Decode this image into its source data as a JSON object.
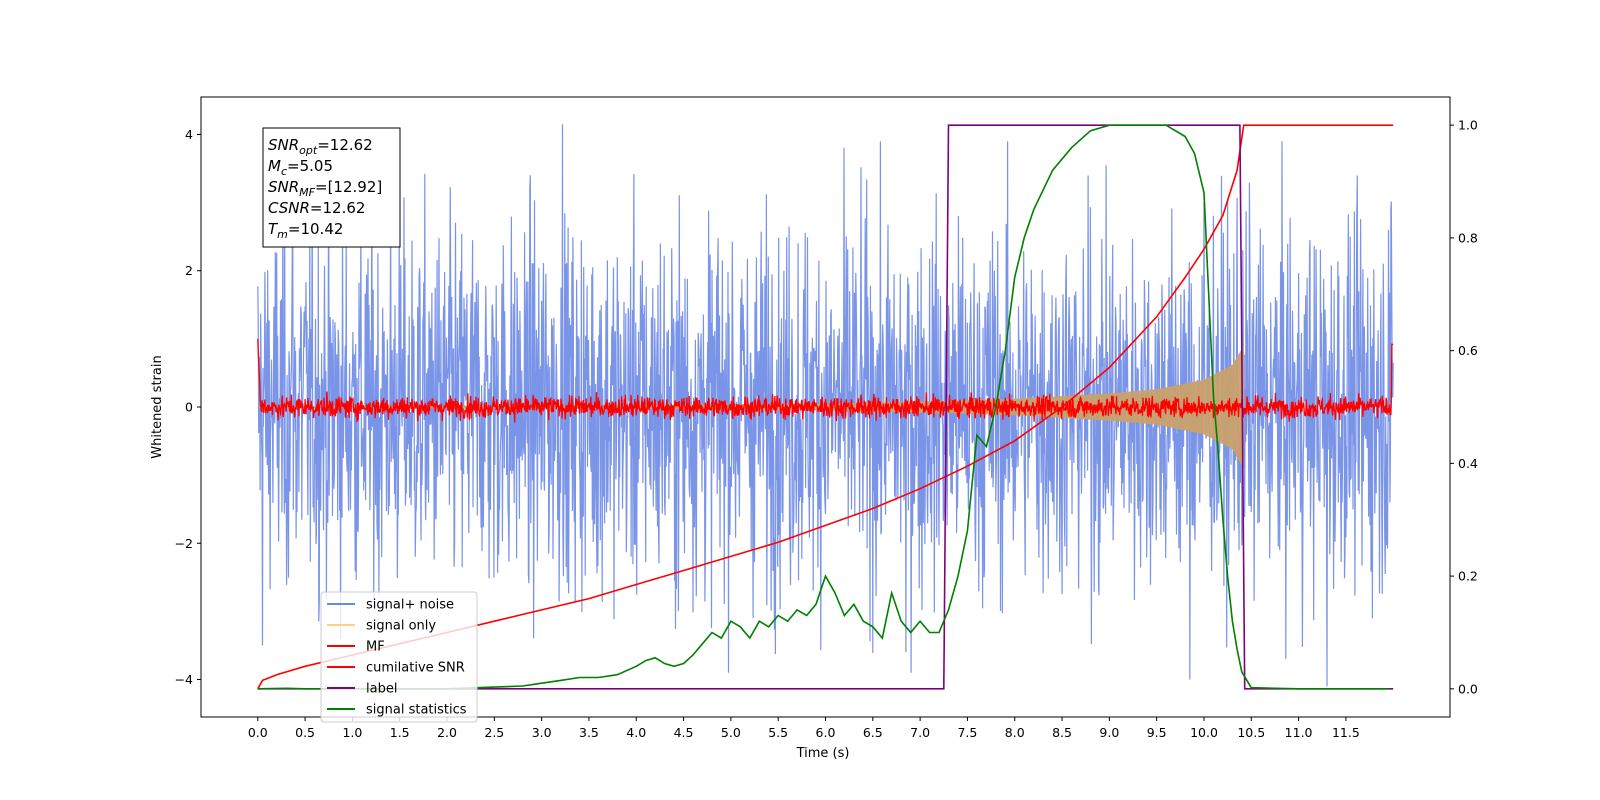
{
  "chart_data": {
    "type": "line",
    "xlabel": "Time (s)",
    "ylabel": "Whitened strain",
    "xlim": [
      -0.6,
      12.6
    ],
    "ylim_left": [
      -4.55,
      4.55
    ],
    "ylim_right": [
      -0.05,
      1.05
    ],
    "x_ticks": [
      0.0,
      0.5,
      1.0,
      1.5,
      2.0,
      2.5,
      3.0,
      3.5,
      4.0,
      4.5,
      5.0,
      5.5,
      6.0,
      6.5,
      7.0,
      7.5,
      8.0,
      8.5,
      9.0,
      9.5,
      10.0,
      10.5,
      11.0,
      11.5
    ],
    "x_tick_labels": [
      "0.0",
      "0.5",
      "1.0",
      "1.5",
      "2.0",
      "2.5",
      "3.0",
      "3.5",
      "4.0",
      "4.5",
      "5.0",
      "5.5",
      "6.0",
      "6.5",
      "7.0",
      "7.5",
      "8.0",
      "8.5",
      "9.0",
      "9.5",
      "10.0",
      "10.5",
      "11.0",
      "11.5"
    ],
    "y_ticks_left": [
      -4,
      -2,
      0,
      2,
      4
    ],
    "y_tick_labels_left": [
      "−4",
      "−2",
      "0",
      "2",
      "4"
    ],
    "y_ticks_right": [
      0.0,
      0.2,
      0.4,
      0.6,
      0.8,
      1.0
    ],
    "y_tick_labels_right": [
      "0.0",
      "0.2",
      "0.4",
      "0.6",
      "0.8",
      "1.0"
    ],
    "legend": {
      "placement": "lower-left",
      "entries": [
        {
          "label": "signal+ noise",
          "color": "#6b88e6"
        },
        {
          "label": "signal only",
          "color": "#ffd080"
        },
        {
          "label": "MF",
          "color": "#ff0000"
        },
        {
          "label": "cumilative SNR",
          "color": "#ff0000"
        },
        {
          "label": "label",
          "color": "#800080"
        },
        {
          "label": "signal statistics",
          "color": "#008000"
        }
      ]
    },
    "annotation": {
      "lines": [
        {
          "base": "SNR",
          "sub": "opt",
          "rest": "=12.62"
        },
        {
          "base": "M",
          "sub": "c",
          "rest": "=5.05"
        },
        {
          "base": "SNR",
          "sub": "MF",
          "rest": "=[12.92]"
        },
        {
          "base": "CSNR",
          "sub": "",
          "rest": "=12.62"
        },
        {
          "base": "T",
          "sub": "m",
          "rest": "=10.42"
        }
      ]
    },
    "series": [
      {
        "name": "signal+ noise",
        "axis": "left",
        "style": "noise",
        "x_range": [
          0.0,
          12.0
        ],
        "amplitude_typical": 1.4,
        "extremes": [
          [
            0.37,
            2.4
          ],
          [
            0.05,
            -3.5
          ],
          [
            3.22,
            4.15
          ],
          [
            6.85,
            -3.6
          ],
          [
            9.85,
            -4.0
          ],
          [
            11.3,
            -4.1
          ],
          [
            11.95,
            2.6
          ]
        ]
      },
      {
        "name": "signal only",
        "axis": "left",
        "style": "envelope",
        "color": "#c9a06c",
        "envelope": [
          [
            0.0,
            0.01
          ],
          [
            2.0,
            0.02
          ],
          [
            4.0,
            0.03
          ],
          [
            6.0,
            0.05
          ],
          [
            7.0,
            0.08
          ],
          [
            8.0,
            0.12
          ],
          [
            9.0,
            0.2
          ],
          [
            9.5,
            0.26
          ],
          [
            10.0,
            0.4
          ],
          [
            10.3,
            0.62
          ],
          [
            10.42,
            0.9
          ],
          [
            10.43,
            0.0
          ]
        ]
      },
      {
        "name": "MF",
        "axis": "left",
        "style": "noise",
        "x_range": [
          0.0,
          12.0
        ],
        "amplitude_typical": 0.08,
        "edges": [
          [
            0.0,
            1.0
          ],
          [
            12.0,
            0.92
          ]
        ]
      },
      {
        "name": "cumilative SNR",
        "axis": "right",
        "x": [
          0.0,
          0.05,
          0.2,
          0.5,
          1.0,
          1.5,
          2.0,
          2.5,
          3.0,
          3.5,
          4.0,
          4.5,
          5.0,
          5.5,
          6.0,
          6.5,
          7.0,
          7.5,
          8.0,
          8.5,
          9.0,
          9.5,
          9.8,
          10.0,
          10.2,
          10.35,
          10.42,
          10.5,
          11.0,
          11.5,
          12.0
        ],
        "y": [
          0.0,
          0.015,
          0.025,
          0.04,
          0.06,
          0.08,
          0.1,
          0.12,
          0.14,
          0.16,
          0.185,
          0.21,
          0.235,
          0.26,
          0.29,
          0.32,
          0.355,
          0.395,
          0.44,
          0.5,
          0.57,
          0.66,
          0.73,
          0.78,
          0.84,
          0.92,
          1.0,
          1.0,
          1.0,
          1.0,
          1.0
        ]
      },
      {
        "name": "label",
        "axis": "right",
        "x": [
          0.0,
          7.25,
          7.3,
          10.38,
          10.43,
          12.0
        ],
        "y": [
          0.0,
          0.0,
          1.0,
          1.0,
          0.0,
          0.0
        ]
      },
      {
        "name": "signal statistics",
        "axis": "right",
        "x": [
          0.0,
          0.3,
          0.5,
          1.0,
          1.5,
          2.0,
          2.5,
          2.8,
          3.0,
          3.2,
          3.4,
          3.6,
          3.8,
          4.0,
          4.1,
          4.2,
          4.3,
          4.4,
          4.5,
          4.6,
          4.7,
          4.8,
          4.9,
          5.0,
          5.1,
          5.2,
          5.3,
          5.4,
          5.5,
          5.6,
          5.7,
          5.8,
          5.9,
          6.0,
          6.1,
          6.2,
          6.3,
          6.4,
          6.5,
          6.6,
          6.7,
          6.8,
          6.9,
          7.0,
          7.1,
          7.2,
          7.3,
          7.4,
          7.5,
          7.6,
          7.7,
          7.8,
          7.9,
          8.0,
          8.1,
          8.2,
          8.4,
          8.6,
          8.8,
          9.0,
          9.2,
          9.4,
          9.6,
          9.8,
          9.9,
          10.0,
          10.05,
          10.1,
          10.15,
          10.2,
          10.25,
          10.3,
          10.35,
          10.4,
          10.5,
          11.0,
          11.5,
          11.95
        ],
        "y": [
          0.0,
          0.001,
          0.0,
          0.0,
          0.0,
          0.0,
          0.003,
          0.005,
          0.01,
          0.015,
          0.02,
          0.02,
          0.025,
          0.04,
          0.05,
          0.055,
          0.045,
          0.04,
          0.045,
          0.06,
          0.08,
          0.1,
          0.09,
          0.12,
          0.11,
          0.09,
          0.12,
          0.11,
          0.13,
          0.12,
          0.14,
          0.13,
          0.15,
          0.2,
          0.17,
          0.13,
          0.15,
          0.12,
          0.11,
          0.09,
          0.17,
          0.12,
          0.1,
          0.12,
          0.1,
          0.1,
          0.14,
          0.2,
          0.28,
          0.45,
          0.43,
          0.5,
          0.6,
          0.73,
          0.8,
          0.85,
          0.92,
          0.96,
          0.99,
          1.0,
          1.0,
          1.0,
          1.0,
          0.98,
          0.95,
          0.88,
          0.7,
          0.52,
          0.42,
          0.3,
          0.2,
          0.12,
          0.07,
          0.03,
          0.002,
          0.0,
          0.0,
          0.0
        ]
      }
    ]
  }
}
